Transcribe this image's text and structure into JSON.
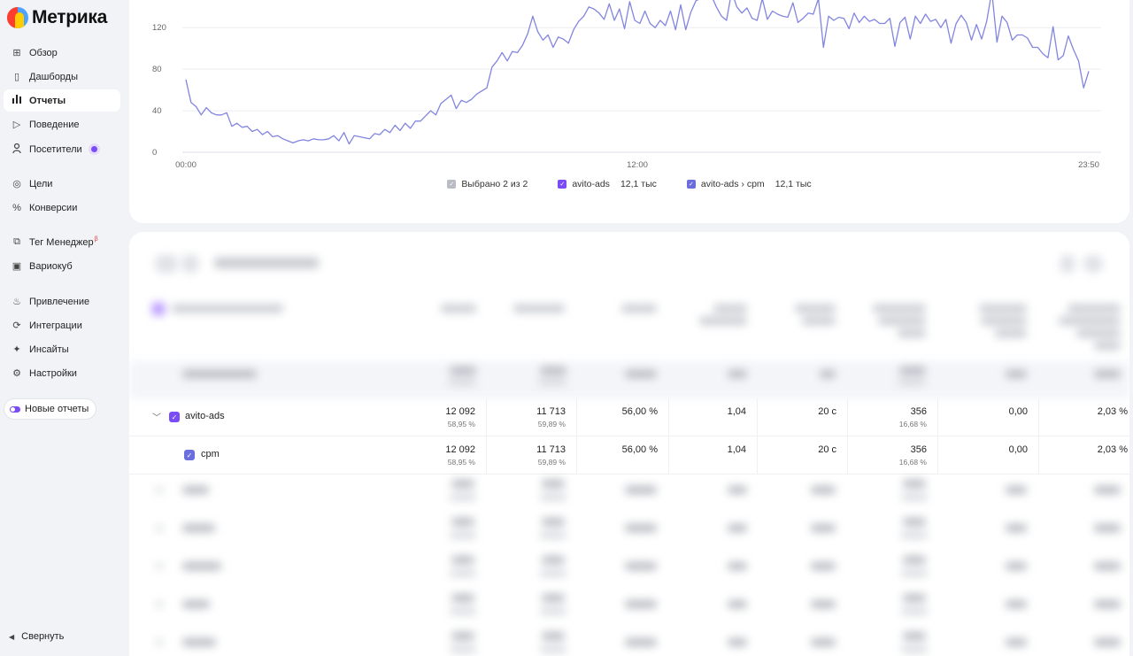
{
  "app": {
    "logo_text": "Метрика"
  },
  "sidebar": {
    "items": [
      {
        "label": "Обзор",
        "icon": "grid-icon"
      },
      {
        "label": "Дашборды",
        "icon": "dashboards-icon"
      },
      {
        "label": "Отчеты",
        "icon": "bar-chart-icon",
        "active": true
      },
      {
        "label": "Поведение",
        "icon": "play-icon"
      },
      {
        "label": "Посетители",
        "icon": "person-icon"
      },
      {
        "label": "Цели",
        "icon": "target-icon"
      },
      {
        "label": "Конверсии",
        "icon": "percent-icon"
      },
      {
        "label": "Тег Менеджер",
        "icon": "tag-manager-icon",
        "sup": "β"
      },
      {
        "label": "Вариокуб",
        "icon": "variocube-icon"
      },
      {
        "label": "Привлечение",
        "icon": "flame-icon"
      },
      {
        "label": "Интеграции",
        "icon": "integrations-icon"
      },
      {
        "label": "Инсайты",
        "icon": "sparkle-icon"
      },
      {
        "label": "Настройки",
        "icon": "gear-icon"
      }
    ],
    "new_reports_label": "Новые отчеты",
    "collapse_label": "Свернуть"
  },
  "chart_data": {
    "type": "line",
    "title": "",
    "xlabel": "",
    "ylabel": "",
    "x_ticks": [
      "00:00",
      "12:00",
      "23:50"
    ],
    "y_ticks": [
      0,
      40,
      80,
      120
    ],
    "ylim": [
      0,
      150
    ],
    "grid": true,
    "color": "#8285e0",
    "series": [
      {
        "name": "avito-ads › cpm",
        "values": [
          70,
          48,
          44,
          36,
          43,
          38,
          36,
          36,
          38,
          25,
          28,
          24,
          25,
          20,
          22,
          17,
          20,
          15,
          16,
          13,
          11,
          9,
          11,
          12,
          11,
          13,
          12,
          12,
          13,
          16,
          11,
          19,
          8,
          16,
          15,
          14,
          13,
          18,
          17,
          22,
          19,
          26,
          21,
          28,
          23,
          30,
          30,
          35,
          40,
          36,
          47,
          51,
          55,
          42,
          50,
          48,
          51,
          56,
          59,
          62,
          82,
          88,
          96,
          88,
          97,
          96,
          103,
          114,
          131,
          116,
          108,
          113,
          101,
          111,
          109,
          105,
          118,
          126,
          131,
          140,
          138,
          134,
          128,
          143,
          127,
          138,
          119,
          145,
          127,
          124,
          136,
          124,
          120,
          127,
          122,
          136,
          118,
          142,
          118,
          135,
          146,
          148,
          148,
          151,
          140,
          131,
          127,
          155,
          140,
          134,
          139,
          129,
          127,
          148,
          128,
          136,
          133,
          131,
          130,
          144,
          125,
          129,
          134,
          133,
          148,
          101,
          131,
          127,
          130,
          129,
          119,
          134,
          125,
          131,
          126,
          128,
          124,
          124,
          129,
          102,
          125,
          130,
          109,
          131,
          124,
          133,
          126,
          128,
          120,
          128,
          105,
          124,
          132,
          125,
          108,
          123,
          109,
          126,
          155,
          106,
          131,
          125,
          108,
          113,
          113,
          110,
          101,
          101,
          95,
          91,
          121,
          89,
          93,
          112,
          99,
          88,
          62,
          78
        ]
      }
    ]
  },
  "legend": {
    "selected": "Выбрано 2 из 2",
    "items": [
      {
        "label": "avito-ads",
        "value": "12,1 тыс",
        "color": "#7a4cf5"
      },
      {
        "label": "avito-ads › cpm",
        "value": "12,1 тыс",
        "color": "#6a6fdd"
      }
    ]
  },
  "table": {
    "rows": [
      {
        "label": "avito-ads",
        "c1": "12 092",
        "c1_sub": "58,95 %",
        "c2": "11 713",
        "c2_sub": "59,89 %",
        "c3": "56,00 %",
        "c4": "1,04",
        "c5": "20 с",
        "c6": "356",
        "c6_sub": "16,68 %",
        "c7": "0,00",
        "c8": "2,03 %"
      },
      {
        "label": "cpm",
        "c1": "12 092",
        "c1_sub": "58,95 %",
        "c2": "11 713",
        "c2_sub": "59,89 %",
        "c3": "56,00 %",
        "c4": "1,04",
        "c5": "20 с",
        "c6": "356",
        "c6_sub": "16,68 %",
        "c7": "0,00",
        "c8": "2,03 %"
      }
    ]
  }
}
